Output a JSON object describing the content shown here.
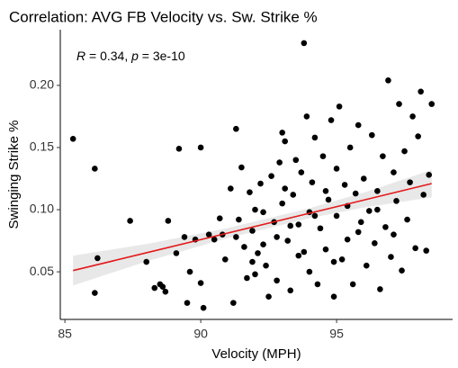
{
  "chart_data": {
    "type": "scatter",
    "title": "Correlation: AVG FB Velocity vs. Sw. Strike %",
    "x_label": "Velocity (MPH)",
    "y_label": "Swinging Strike %",
    "annotation": [
      "R",
      " = 0.34, ",
      "p",
      " = 3e-10"
    ],
    "xlim": [
      84.83,
      99.27
    ],
    "ylim": [
      0.0117,
      0.2448
    ],
    "xticks": [
      85,
      90,
      95
    ],
    "yticks": [
      0.05,
      {
        "value": 0.1,
        "label": "0.10"
      },
      0.15,
      {
        "value": 0.2,
        "label": "0.20"
      }
    ],
    "color": "#000000",
    "fit_color": "#e31a1c",
    "band_color": "#d9d9d9",
    "x": [
      85.3,
      86.1,
      86.2,
      86.1,
      87.4,
      88,
      88.3,
      88.6,
      88.7,
      88.5,
      88.8,
      89.2,
      89.1,
      89.4,
      89.5,
      89.8,
      90,
      90,
      90.1,
      89.6,
      90.3,
      90.5,
      90.7,
      90.9,
      91.1,
      91.3,
      91.3,
      91.5,
      91.7,
      91.8,
      91.2,
      91.4,
      91.9,
      92,
      92.1,
      92.2,
      92.3,
      92.4,
      92.5,
      92.6,
      92.7,
      92.8,
      92.9,
      93,
      93,
      93.1,
      93.2,
      93.3,
      93.4,
      93.5,
      93.6,
      93.7,
      93.8,
      93.8,
      93.9,
      94,
      94,
      94.1,
      94.2,
      94.3,
      94.4,
      94.5,
      94.6,
      94.7,
      94.8,
      94.9,
      95,
      95,
      95.1,
      95.2,
      95.3,
      95.4,
      95.5,
      95.6,
      95.7,
      95.8,
      95.9,
      96,
      96.1,
      96.2,
      96.3,
      96.4,
      96.5,
      96.6,
      96.7,
      96.8,
      96.9,
      97,
      97.1,
      97.2,
      97.3,
      97.4,
      97.5,
      97.6,
      97.7,
      97.8,
      97.9,
      98,
      98.1,
      98.2,
      98.5,
      98.4,
      98.3,
      92,
      92.3,
      93.3,
      94.6,
      93.6,
      94.9,
      95.4,
      92.8,
      91.6,
      90.8,
      94.2,
      93.1,
      95.8,
      96.5,
      97.1,
      91.9
    ],
    "values": [
      0.157,
      0.133,
      0.061,
      0.033,
      0.091,
      0.058,
      0.037,
      0.038,
      0.034,
      0.04,
      0.091,
      0.149,
      0.065,
      0.078,
      0.025,
      0.076,
      0.15,
      0.041,
      0.021,
      0.05,
      0.08,
      0.076,
      0.093,
      0.06,
      0.117,
      0.165,
      0.078,
      0.134,
      0.045,
      0.114,
      0.025,
      0.092,
      0.083,
      0.1,
      0.065,
      0.121,
      0.072,
      0.055,
      0.03,
      0.127,
      0.09,
      0.043,
      0.138,
      0.105,
      0.162,
      0.155,
      0.075,
      0.035,
      0.112,
      0.14,
      0.088,
      0.13,
      0.234,
      0.066,
      0.175,
      0.098,
      0.05,
      0.122,
      0.158,
      0.04,
      0.085,
      0.143,
      0.068,
      0.108,
      0.172,
      0.03,
      0.133,
      0.095,
      0.183,
      0.06,
      0.12,
      0.076,
      0.15,
      0.04,
      0.113,
      0.168,
      0.09,
      0.125,
      0.055,
      0.099,
      0.16,
      0.073,
      0.115,
      0.036,
      0.143,
      0.086,
      0.204,
      0.062,
      0.13,
      0.107,
      0.185,
      0.051,
      0.147,
      0.092,
      0.122,
      0.175,
      0.069,
      0.159,
      0.195,
      0.112,
      0.185,
      0.128,
      0.067,
      0.048,
      0.098,
      0.087,
      0.115,
      0.063,
      0.058,
      0.103,
      0.078,
      0.07,
      0.08,
      0.095,
      0.117,
      0.082,
      0.1,
      0.08,
      0.058
    ],
    "fit": {
      "x": [
        85.3,
        88,
        91,
        94,
        96,
        98.5
      ],
      "y": [
        0.051,
        0.0653,
        0.0812,
        0.0971,
        0.1077,
        0.121
      ],
      "lower": [
        0.039,
        0.0583,
        0.0772,
        0.0931,
        0.1017,
        0.11
      ],
      "upper": [
        0.063,
        0.0723,
        0.0852,
        0.1011,
        0.1137,
        0.132
      ]
    }
  }
}
